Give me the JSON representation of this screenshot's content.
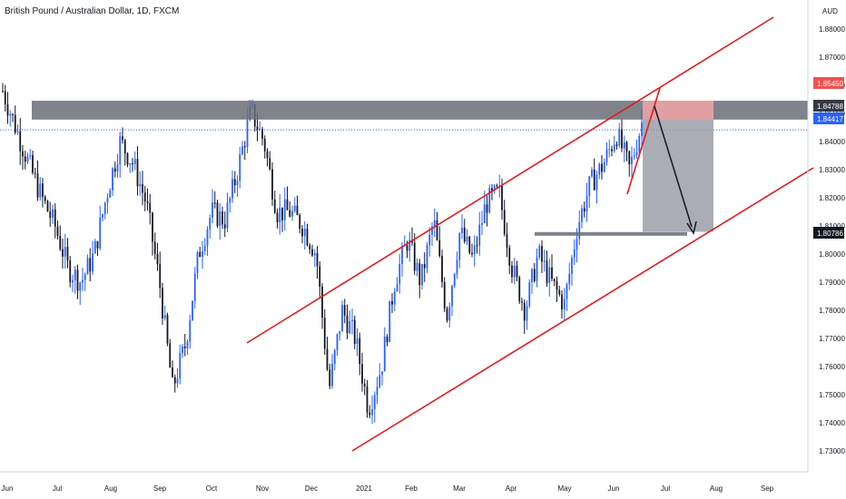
{
  "title": "British Pound / Australian Dollar, 1D, FXCM",
  "currency": "AUD",
  "colors": {
    "bull": "#2962ff",
    "bear": "#131722",
    "channel": "#e31b1b",
    "zone": "#6a6d78",
    "tag_blue": "#2962ff",
    "tag_red": "#ef5350",
    "tag_dark": "#363a45",
    "target_box": "#9598a1",
    "stop_box": "#f7a8a8",
    "arrow": "#131722",
    "price_line": "#2962ff"
  },
  "price_tags": {
    "current": "1.84417",
    "upper_zone": "1.84788",
    "stop": "1.85450",
    "target": "1.80786"
  },
  "chart_data": {
    "type": "candlestick",
    "title": "British Pound / Australian Dollar, 1D, FXCM",
    "ylim": [
      1.73,
      1.88
    ],
    "y_ticks": [
      "1.73000",
      "1.74000",
      "1.75000",
      "1.76000",
      "1.77000",
      "1.78000",
      "1.79000",
      "1.80000",
      "1.81000",
      "1.82000",
      "1.83000",
      "1.84000",
      "1.85000",
      "1.86000",
      "1.87000",
      "1.88000"
    ],
    "x_ticks": [
      "Jun",
      "Jul",
      "Aug",
      "Sep",
      "Oct",
      "Nov",
      "Dec",
      "2021",
      "Feb",
      "Mar",
      "Apr",
      "May",
      "Jun",
      "Jul",
      "Aug",
      "Sep"
    ],
    "trend_path": [
      [
        "Jun",
        1.858
      ],
      [
        "Jun",
        1.845
      ],
      [
        "Jun",
        1.832
      ],
      [
        "Jul",
        1.82
      ],
      [
        "Jul",
        1.81
      ],
      [
        "Jul",
        1.795
      ],
      [
        "Jul",
        1.79
      ],
      [
        "Aug",
        1.8
      ],
      [
        "Aug",
        1.822
      ],
      [
        "Aug",
        1.84
      ],
      [
        "Aug",
        1.832
      ],
      [
        "Sep",
        1.818
      ],
      [
        "Sep",
        1.79
      ],
      [
        "Sep",
        1.752
      ],
      [
        "Sep",
        1.768
      ],
      [
        "Oct",
        1.8
      ],
      [
        "Oct",
        1.815
      ],
      [
        "Oct",
        1.812
      ],
      [
        "Oct",
        1.83
      ],
      [
        "Nov",
        1.851
      ],
      [
        "Nov",
        1.84
      ],
      [
        "Nov",
        1.815
      ],
      [
        "Nov",
        1.815
      ],
      [
        "Dec",
        1.81
      ],
      [
        "Dec",
        1.8
      ],
      [
        "Dec",
        1.752
      ],
      [
        "Dec",
        1.78
      ],
      [
        "2021",
        1.77
      ],
      [
        "2021",
        1.745
      ],
      [
        "2021",
        1.76
      ],
      [
        "Feb",
        1.79
      ],
      [
        "Feb",
        1.805
      ],
      [
        "Feb",
        1.79
      ],
      [
        "Mar",
        1.812
      ],
      [
        "Mar",
        1.778
      ],
      [
        "Mar",
        1.808
      ],
      [
        "Mar",
        1.798
      ],
      [
        "Apr",
        1.818
      ],
      [
        "Apr",
        1.822
      ],
      [
        "Apr",
        1.795
      ],
      [
        "Apr",
        1.78
      ],
      [
        "May",
        1.8
      ],
      [
        "May",
        1.79
      ],
      [
        "May",
        1.782
      ],
      [
        "May",
        1.81
      ],
      [
        "Jun",
        1.825
      ],
      [
        "Jun",
        1.832
      ],
      [
        "Jun",
        1.843
      ],
      [
        "Jun",
        1.83
      ],
      [
        "Jul",
        1.848
      ]
    ],
    "zones": [
      {
        "name": "resistance",
        "from": 1.8478,
        "to": 1.8545
      },
      {
        "name": "support",
        "from": 1.8065,
        "to": 1.8078
      },
      {
        "name": "target-box",
        "from": 1.8079,
        "to": 1.8478
      },
      {
        "name": "stop-box",
        "from": 1.8478,
        "to": 1.8545
      }
    ],
    "channel": {
      "upper": [
        [
          "Dec",
          1.771
        ],
        [
          "Sep",
          1.875
        ]
      ],
      "lower": [
        [
          "2021",
          1.739
        ],
        [
          "Sep",
          1.832
        ]
      ]
    },
    "projection": {
      "from": 1.847,
      "to": 1.8085
    }
  }
}
